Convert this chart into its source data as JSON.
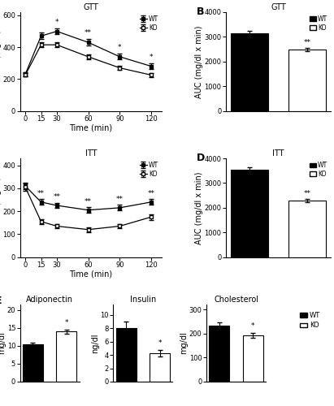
{
  "gtt_time": [
    0,
    15,
    30,
    60,
    90,
    120
  ],
  "gtt_wt_mean": [
    230,
    470,
    500,
    430,
    340,
    280
  ],
  "gtt_wt_sem": [
    15,
    20,
    18,
    20,
    18,
    18
  ],
  "gtt_ko_mean": [
    225,
    415,
    415,
    340,
    270,
    225
  ],
  "gtt_ko_sem": [
    10,
    15,
    15,
    15,
    12,
    12
  ],
  "gtt_sig_times": [
    30,
    60,
    90,
    120
  ],
  "gtt_sig_labels": [
    "*",
    "**",
    "*",
    "*"
  ],
  "gtt_auc_wt": 3150,
  "gtt_auc_wt_sem": 80,
  "gtt_auc_ko": 2480,
  "gtt_auc_ko_sem": 60,
  "itt_time": [
    0,
    15,
    30,
    60,
    90,
    120
  ],
  "itt_wt_mean": [
    310,
    240,
    225,
    205,
    215,
    240
  ],
  "itt_wt_sem": [
    15,
    12,
    12,
    12,
    12,
    12
  ],
  "itt_ko_mean": [
    305,
    155,
    135,
    120,
    135,
    175
  ],
  "itt_ko_sem": [
    15,
    10,
    10,
    10,
    10,
    12
  ],
  "itt_sig_times": [
    15,
    30,
    60,
    90,
    120
  ],
  "itt_sig_labels": [
    "**",
    "**",
    "**",
    "**",
    "**"
  ],
  "itt_auc_wt": 3550,
  "itt_auc_wt_sem": 80,
  "itt_auc_ko": 2280,
  "itt_auc_ko_sem": 70,
  "adipo_wt_mean": 10.4,
  "adipo_wt_sem": 0.45,
  "adipo_ko_mean": 14.0,
  "adipo_ko_sem": 0.6,
  "insulin_wt_mean": 8.0,
  "insulin_wt_sem": 1.0,
  "insulin_ko_mean": 4.2,
  "insulin_ko_sem": 0.5,
  "chol_wt_mean": 232,
  "chol_wt_sem": 14,
  "chol_ko_mean": 192,
  "chol_ko_sem": 10,
  "wt_color": "#000000",
  "ko_color": "#ffffff",
  "line_color": "#000000",
  "bg_color": "#ffffff"
}
